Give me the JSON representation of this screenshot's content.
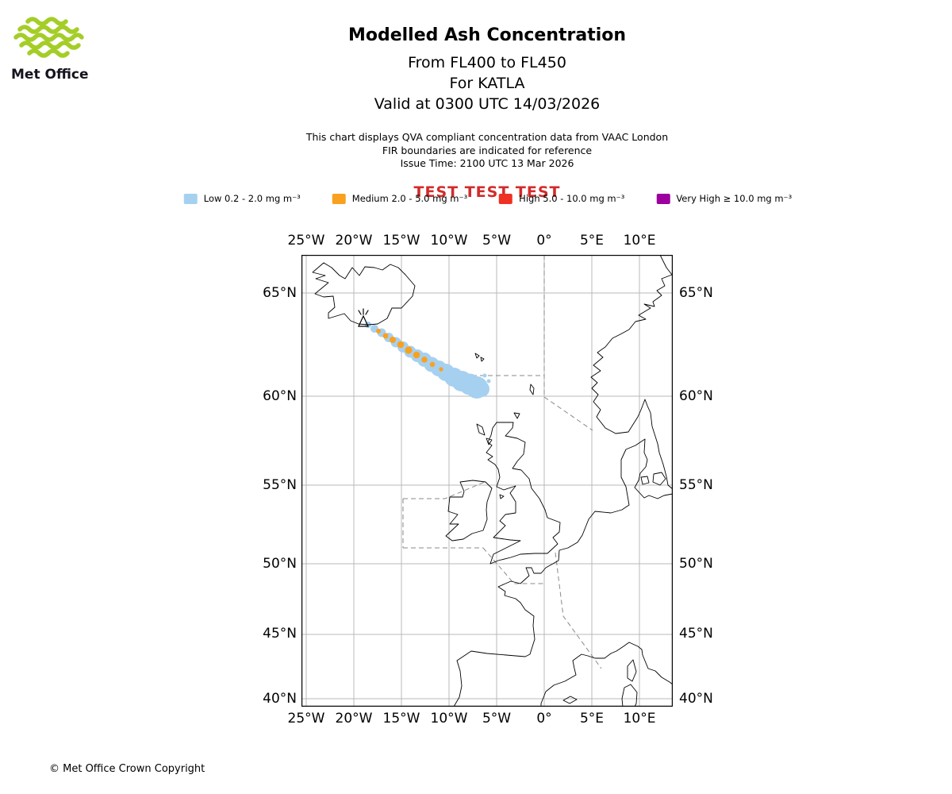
{
  "logo": {
    "brand": "Met Office"
  },
  "colors": {
    "brand_green": "#A4CE27",
    "test_red": "#D22B2B",
    "low_blue": "#A6D0F0",
    "medium_orange": "#F9A11E",
    "high_red": "#EF3022",
    "very_high_purple": "#9C009E"
  },
  "header": {
    "title": "Modelled Ash Concentration",
    "subtitle_fl": "From FL400 to FL450",
    "subtitle_volcano": "For KATLA",
    "subtitle_valid": "Valid at 0300 UTC 14/03/2026",
    "info_line1": "This chart displays QVA compliant concentration data from VAAC London",
    "info_line2": "FIR boundaries are indicated for reference",
    "info_line3": "Issue Time: 2100 UTC 13 Mar 2026",
    "test_banner": "TEST TEST TEST"
  },
  "legend": {
    "items": [
      {
        "label": "Low 0.2 - 2.0 mg m⁻³",
        "color": "#A6D0F0"
      },
      {
        "label": "Medium 2.0 - 5.0 mg m⁻³",
        "color": "#F9A11E"
      },
      {
        "label": "High 5.0 - 10.0 mg m⁻³",
        "color": "#EF3022"
      },
      {
        "label": "Very High ≥ 10.0 mg m⁻³",
        "color": "#9C009E"
      }
    ]
  },
  "map": {
    "lon_ticks": [
      "25°W",
      "20°W",
      "15°W",
      "10°W",
      "5°W",
      "0°",
      "5°E",
      "10°E"
    ],
    "lat_ticks": [
      "65°N",
      "60°N",
      "55°N",
      "50°N",
      "45°N",
      "40°N"
    ]
  },
  "footer": {
    "copyright": "© Met Office Crown Copyright"
  }
}
